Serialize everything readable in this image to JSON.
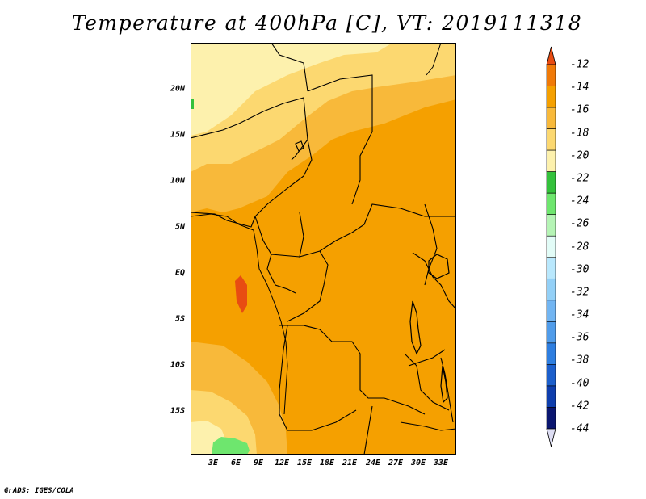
{
  "title": "Temperature at 400hPa [C], VT: 2019111318",
  "axes": {
    "lat_ticks": [
      "20N",
      "15N",
      "10N",
      "5N",
      "EQ",
      "5S",
      "10S",
      "15S"
    ],
    "lon_ticks": [
      "3E",
      "6E",
      "9E",
      "12E",
      "15E",
      "18E",
      "21E",
      "24E",
      "27E",
      "30E",
      "33E"
    ]
  },
  "colorbar": {
    "labels": [
      "-12",
      "-14",
      "-16",
      "-18",
      "-20",
      "-22",
      "-24",
      "-26",
      "-28",
      "-30",
      "-32",
      "-34",
      "-36",
      "-38",
      "-40",
      "-42",
      "-44"
    ],
    "colors": [
      "#e84c12",
      "#f07a08",
      "#f5a000",
      "#f8b93a",
      "#fcd870",
      "#fdf1ad",
      "#34c13c",
      "#6ee66e",
      "#b5f4b5",
      "#e2fcf7",
      "#b9e8fd",
      "#93d0f7",
      "#72b5f2",
      "#509cea",
      "#2e7ee0",
      "#1c5fcc",
      "#0e3ead",
      "#0a1670",
      "#ddddf3"
    ]
  },
  "credit": "GrADS: IGES/COLA"
}
